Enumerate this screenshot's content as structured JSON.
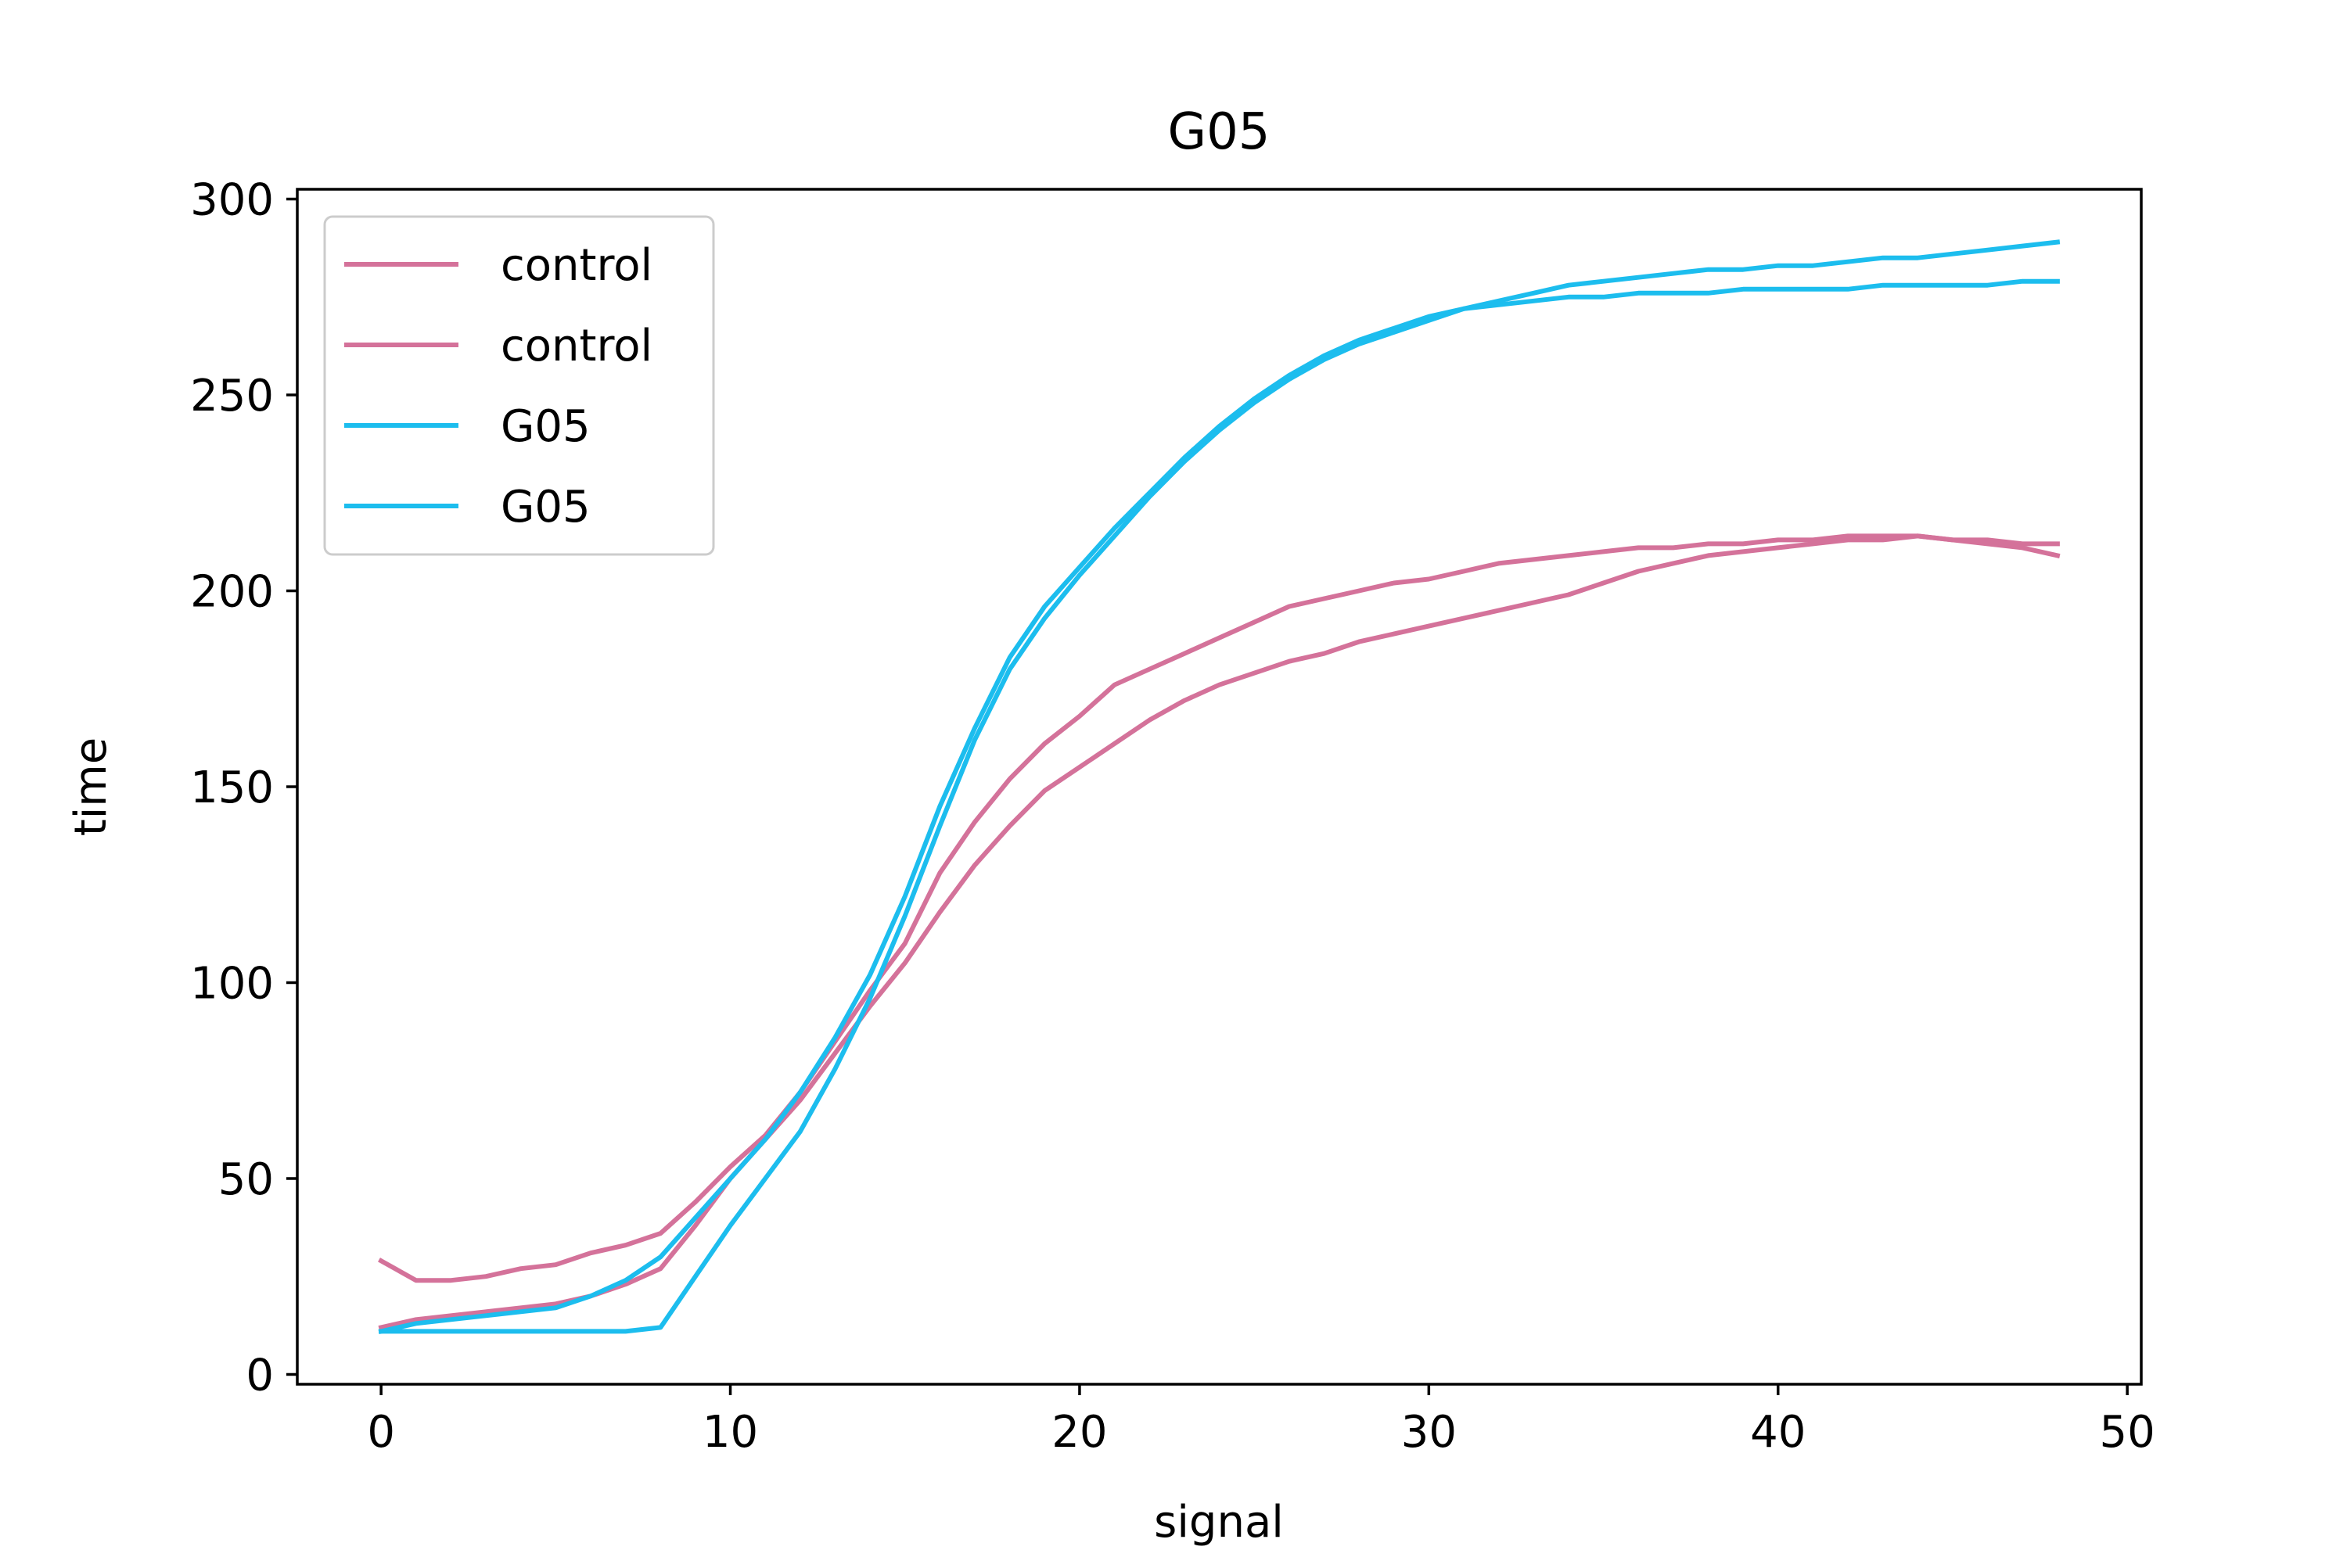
{
  "chart_data": {
    "type": "line",
    "title": "G05",
    "xlabel": "signal",
    "ylabel": "time",
    "xlim": [
      -2.4,
      50.4
    ],
    "ylim": [
      -2.5,
      302.5
    ],
    "xticks": [
      0,
      10,
      20,
      30,
      40,
      50
    ],
    "yticks": [
      0,
      50,
      100,
      150,
      200,
      250,
      300
    ],
    "grid": false,
    "legend_position": "top-left",
    "colors": {
      "control": "#d4729a",
      "G05": "#1cbdee"
    },
    "series": [
      {
        "name": "control",
        "color": "#d4729a",
        "x": [
          0,
          1,
          2,
          3,
          4,
          5,
          6,
          7,
          8,
          9,
          10,
          11,
          12,
          13,
          14,
          15,
          16,
          17,
          18,
          19,
          20,
          21,
          22,
          23,
          24,
          25,
          26,
          27,
          28,
          29,
          30,
          31,
          32,
          33,
          34,
          35,
          36,
          37,
          38,
          39,
          40,
          41,
          42,
          43,
          44,
          45,
          46,
          47,
          48
        ],
        "values": [
          29,
          24,
          24,
          25,
          27,
          28,
          31,
          33,
          36,
          44,
          53,
          61,
          72,
          85,
          98,
          110,
          128,
          141,
          152,
          161,
          168,
          176,
          180,
          184,
          188,
          192,
          196,
          198,
          200,
          202,
          203,
          205,
          207,
          208,
          209,
          210,
          211,
          211,
          212,
          212,
          213,
          213,
          214,
          214,
          214,
          213,
          213,
          212,
          212
        ]
      },
      {
        "name": "control",
        "color": "#d4729a",
        "x": [
          0,
          1,
          2,
          3,
          4,
          5,
          6,
          7,
          8,
          9,
          10,
          11,
          12,
          13,
          14,
          15,
          16,
          17,
          18,
          19,
          20,
          21,
          22,
          23,
          24,
          25,
          26,
          27,
          28,
          29,
          30,
          31,
          32,
          33,
          34,
          35,
          36,
          37,
          38,
          39,
          40,
          41,
          42,
          43,
          44,
          45,
          46,
          47,
          48
        ],
        "values": [
          12,
          14,
          15,
          16,
          17,
          18,
          20,
          23,
          27,
          38,
          50,
          60,
          70,
          82,
          94,
          105,
          118,
          130,
          140,
          149,
          155,
          161,
          167,
          172,
          176,
          179,
          182,
          184,
          187,
          189,
          191,
          193,
          195,
          197,
          199,
          202,
          205,
          207,
          209,
          210,
          211,
          212,
          213,
          213,
          214,
          213,
          212,
          211,
          209
        ]
      },
      {
        "name": "G05",
        "color": "#1cbdee",
        "x": [
          0,
          1,
          2,
          3,
          4,
          5,
          6,
          7,
          8,
          9,
          10,
          11,
          12,
          13,
          14,
          15,
          16,
          17,
          18,
          19,
          20,
          21,
          22,
          23,
          24,
          25,
          26,
          27,
          28,
          29,
          30,
          31,
          32,
          33,
          34,
          35,
          36,
          37,
          38,
          39,
          40,
          41,
          42,
          43,
          44,
          45,
          46,
          47,
          48
        ],
        "values": [
          11,
          11,
          11,
          11,
          11,
          11,
          11,
          11,
          12,
          25,
          38,
          50,
          62,
          78,
          96,
          117,
          140,
          162,
          180,
          193,
          204,
          214,
          224,
          233,
          241,
          248,
          254,
          259,
          263,
          266,
          269,
          272,
          274,
          276,
          278,
          279,
          280,
          281,
          282,
          282,
          283,
          283,
          284,
          285,
          285,
          286,
          287,
          288,
          289
        ]
      },
      {
        "name": "G05",
        "color": "#1cbdee",
        "x": [
          0,
          1,
          2,
          3,
          4,
          5,
          6,
          7,
          8,
          9,
          10,
          11,
          12,
          13,
          14,
          15,
          16,
          17,
          18,
          19,
          20,
          21,
          22,
          23,
          24,
          25,
          26,
          27,
          28,
          29,
          30,
          31,
          32,
          33,
          34,
          35,
          36,
          37,
          38,
          39,
          40,
          41,
          42,
          43,
          44,
          45,
          46,
          47,
          48
        ],
        "values": [
          11,
          13,
          14,
          15,
          16,
          17,
          20,
          24,
          30,
          40,
          50,
          60,
          72,
          86,
          102,
          122,
          145,
          165,
          183,
          196,
          206,
          216,
          225,
          234,
          242,
          249,
          255,
          260,
          264,
          267,
          270,
          272,
          273,
          274,
          275,
          275,
          276,
          276,
          276,
          277,
          277,
          277,
          277,
          278,
          278,
          278,
          278,
          279,
          279
        ]
      }
    ]
  }
}
